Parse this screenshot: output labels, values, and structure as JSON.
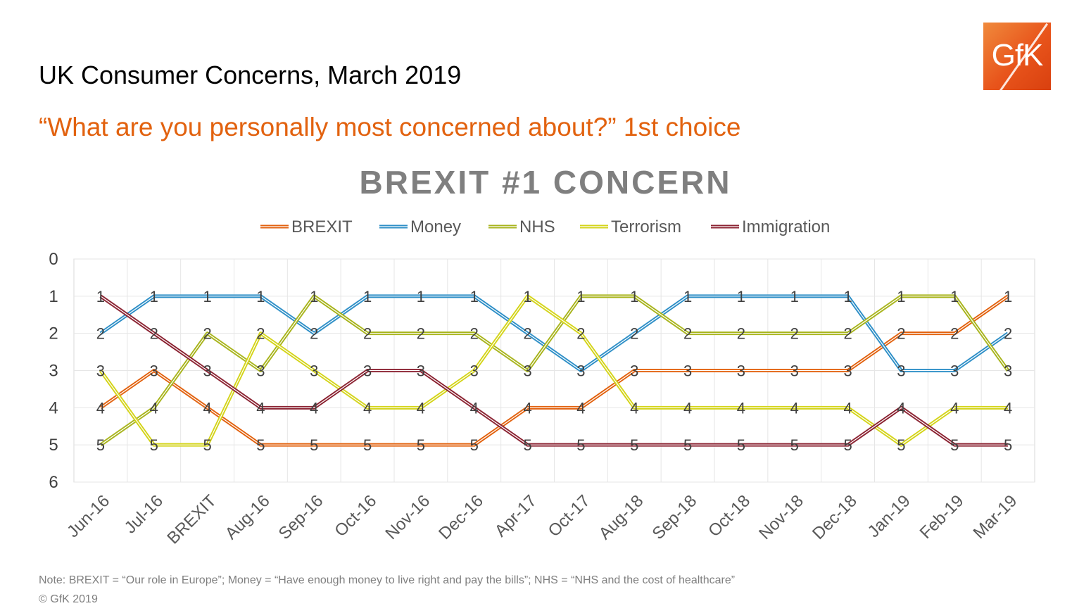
{
  "slide": {
    "title": "UK Consumer Concerns, March 2019",
    "subtitle": "“What are you personally most concerned about?” 1st choice",
    "logo_text": "GfK",
    "note": "Note: BREXIT = “Our role in Europe”; Money = “Have enough money to live right and pay the bills”; NHS = “NHS and the cost of healthcare”",
    "copyright": "© GfK 2019"
  },
  "chart_data": {
    "type": "line",
    "title": "BREXIT #1 CONCERN",
    "xlabel": "",
    "ylabel": "",
    "ylim": [
      0,
      6
    ],
    "y_reversed": true,
    "y_ticks": [
      0,
      1,
      2,
      3,
      4,
      5,
      6
    ],
    "grid": true,
    "legend_position": "top",
    "data_labels": true,
    "categories": [
      "Jun-16",
      "Jul-16",
      "BREXIT",
      "Aug-16",
      "Sep-16",
      "Oct-16",
      "Nov-16",
      "Dec-16",
      "Apr-17",
      "Oct-17",
      "Aug-18",
      "Sep-18",
      "Oct-18",
      "Nov-18",
      "Dec-18",
      "Jan-19",
      "Feb-19",
      "Mar-19"
    ],
    "series": [
      {
        "name": "BREXIT",
        "color": "#e2620f",
        "values": [
          4,
          3,
          4,
          5,
          5,
          5,
          5,
          5,
          4,
          4,
          3,
          3,
          3,
          3,
          3,
          2,
          2,
          1
        ]
      },
      {
        "name": "Money",
        "color": "#2e8fc7",
        "values": [
          2,
          1,
          1,
          1,
          2,
          1,
          1,
          1,
          2,
          3,
          2,
          1,
          1,
          1,
          1,
          3,
          3,
          2
        ]
      },
      {
        "name": "NHS",
        "color": "#a8b41c",
        "values": [
          5,
          4,
          2,
          3,
          1,
          2,
          2,
          2,
          3,
          1,
          1,
          2,
          2,
          2,
          2,
          1,
          1,
          3
        ]
      },
      {
        "name": "Terrorism",
        "color": "#d4d41a",
        "values": [
          3,
          5,
          5,
          2,
          3,
          4,
          4,
          3,
          1,
          2,
          4,
          4,
          4,
          4,
          4,
          5,
          4,
          4
        ]
      },
      {
        "name": "Immigration",
        "color": "#8b2332",
        "values": [
          1,
          2,
          3,
          4,
          4,
          3,
          3,
          4,
          5,
          5,
          5,
          5,
          5,
          5,
          5,
          4,
          5,
          5
        ]
      }
    ]
  }
}
